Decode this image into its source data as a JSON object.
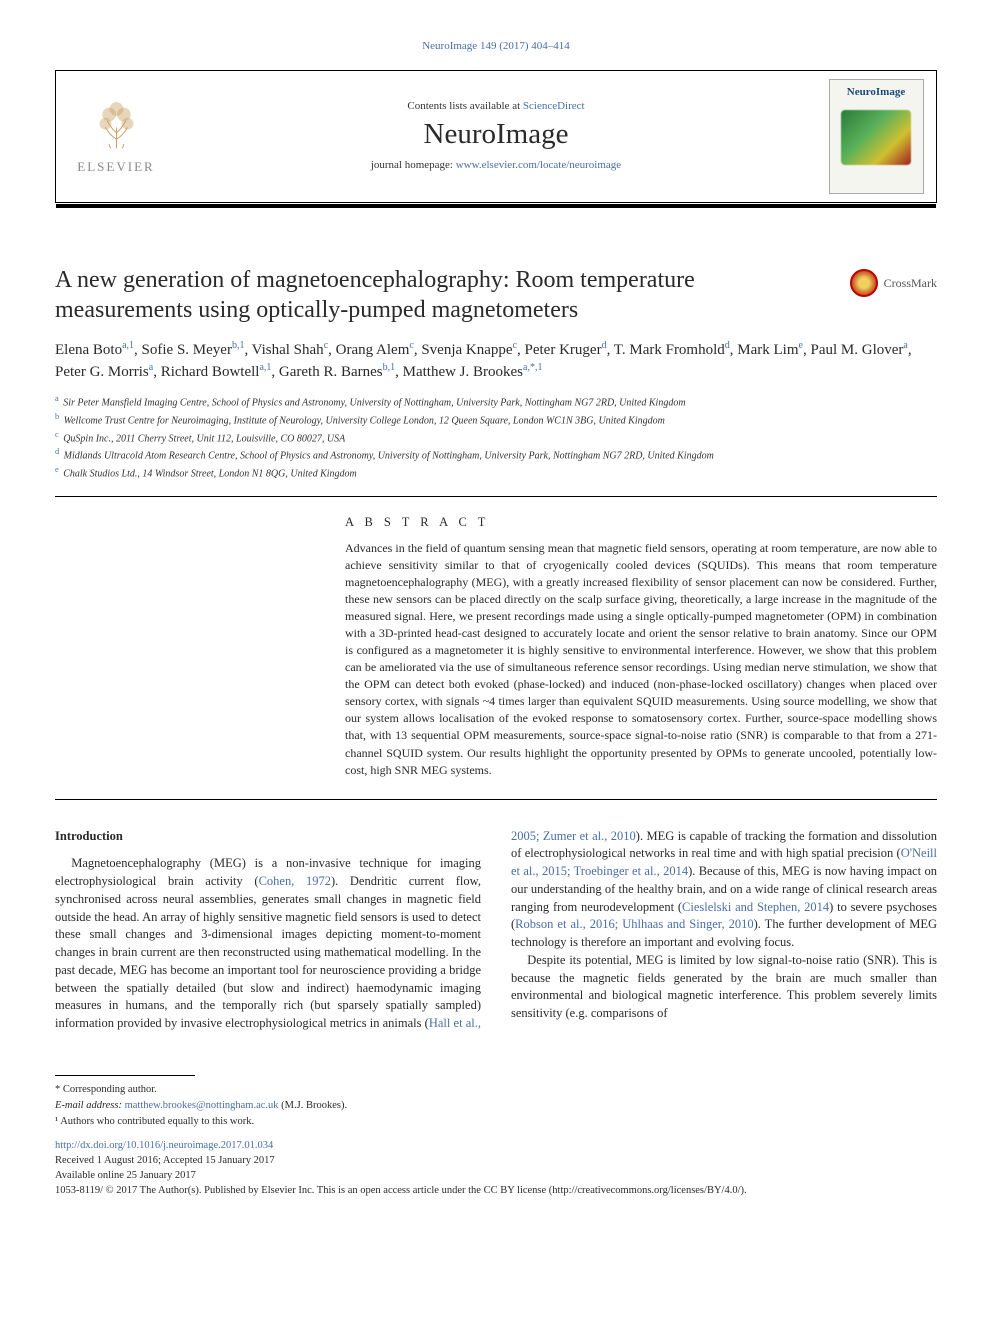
{
  "citation_header": "NeuroImage 149 (2017) 404–414",
  "masthead": {
    "contents_prefix": "Contents lists available at ",
    "contents_link": "ScienceDirect",
    "journal": "NeuroImage",
    "homepage_prefix": "journal homepage: ",
    "homepage_url": "www.elsevier.com/locate/neuroimage",
    "publisher_word": "ELSEVIER",
    "cover_title": "NeuroImage"
  },
  "crossmark_label": "CrossMark",
  "title": "A new generation of magnetoencephalography: Room temperature measurements using optically-pumped magnetometers",
  "authors_html": "Elena Boto<sup>a,1</sup>, Sofie S. Meyer<sup>b,1</sup>, Vishal Shah<sup>c</sup>, Orang Alem<sup>c</sup>, Svenja Knappe<sup>c</sup>, Peter Kruger<sup>d</sup>, T. Mark Fromhold<sup>d</sup>, Mark Lim<sup>e</sup>, Paul M. Glover<sup>a</sup>, Peter G. Morris<sup>a</sup>, Richard Bowtell<sup>a,1</sup>, Gareth R. Barnes<sup>b,1</sup>, Matthew J. Brookes<sup>a,*,1</sup>",
  "affiliations": [
    {
      "key": "a",
      "text": "Sir Peter Mansfield Imaging Centre, School of Physics and Astronomy, University of Nottingham, University Park, Nottingham NG7 2RD, United Kingdom"
    },
    {
      "key": "b",
      "text": "Wellcome Trust Centre for Neuroimaging, Institute of Neurology, University College London, 12 Queen Square, London WC1N 3BG, United Kingdom"
    },
    {
      "key": "c",
      "text": "QuSpin Inc., 2011 Cherry Street, Unit 112, Louisville, CO 80027, USA"
    },
    {
      "key": "d",
      "text": "Midlands Ultracold Atom Research Centre, School of Physics and Astronomy, University of Nottingham, University Park, Nottingham NG7 2RD, United Kingdom"
    },
    {
      "key": "e",
      "text": "Chalk Studios Ltd., 14 Windsor Street, London N1 8QG, United Kingdom"
    }
  ],
  "abstract": {
    "heading": "A B S T R A C T",
    "body": "Advances in the field of quantum sensing mean that magnetic field sensors, operating at room temperature, are now able to achieve sensitivity similar to that of cryogenically cooled devices (SQUIDs). This means that room temperature magnetoencephalography (MEG), with a greatly increased flexibility of sensor placement can now be considered. Further, these new sensors can be placed directly on the scalp surface giving, theoretically, a large increase in the magnitude of the measured signal. Here, we present recordings made using a single optically-pumped magnetometer (OPM) in combination with a 3D-printed head-cast designed to accurately locate and orient the sensor relative to brain anatomy. Since our OPM is configured as a magnetometer it is highly sensitive to environmental interference. However, we show that this problem can be ameliorated via the use of simultaneous reference sensor recordings. Using median nerve stimulation, we show that the OPM can detect both evoked (phase-locked) and induced (non-phase-locked oscillatory) changes when placed over sensory cortex, with signals ~4 times larger than equivalent SQUID measurements. Using source modelling, we show that our system allows localisation of the evoked response to somatosensory cortex. Further, source-space modelling shows that, with 13 sequential OPM measurements, source-space signal-to-noise ratio (SNR) is comparable to that from a 271-channel SQUID system. Our results highlight the opportunity presented by OPMs to generate uncooled, potentially low-cost, high SNR MEG systems."
  },
  "section_heading": "Introduction",
  "body_paragraphs": {
    "p1_pre": "Magnetoencephalography (MEG) is a non-invasive technique for imaging electrophysiological brain activity (",
    "p1_cite": "Cohen, 1972",
    "p1_post": "). Dendritic current flow, synchronised across neural assemblies, generates small changes in magnetic field outside the head. An array of highly sensitive magnetic field sensors is used to detect these small changes and 3-dimensional images depicting moment-to-moment changes in brain current are then reconstructed using mathematical modelling. In the past decade, MEG has become an important tool for neuroscience providing a bridge between the spatially detailed (but slow and indirect) haemodynamic imaging measures in humans, and the temporally rich (but sparsely spatially sampled) information provided by",
    "p2_a": "invasive electrophysiological metrics in animals (",
    "p2_cite1": "Hall et al., 2005; Zumer et al., 2010",
    "p2_b": "). MEG is capable of tracking the formation and dissolution of electrophysiological networks in real time and with high spatial precision (",
    "p2_cite2": "O'Neill et al., 2015; Troebinger et al., 2014",
    "p2_c": "). Because of this, MEG is now having impact on our understanding of the healthy brain, and on a wide range of clinical research areas ranging from neurodevelopment (",
    "p2_cite3": "Cieslelski and Stephen, 2014",
    "p2_d": ") to severe psychoses (",
    "p2_cite4": "Robson et al., 2016; Uhlhaas and Singer, 2010",
    "p2_e": "). The further development of MEG technology is therefore an important and evolving focus.",
    "p3": "Despite its potential, MEG is limited by low signal-to-noise ratio (SNR). This is because the magnetic fields generated by the brain are much smaller than environmental and biological magnetic interference. This problem severely limits sensitivity (e.g. comparisons of"
  },
  "footnotes": {
    "corr": "* Corresponding author.",
    "email_label": "E-mail address: ",
    "email": "matthew.brookes@nottingham.ac.uk",
    "email_suffix": " (M.J. Brookes).",
    "equal": "¹ Authors who contributed equally to this work."
  },
  "doi_block": {
    "doi": "http://dx.doi.org/10.1016/j.neuroimage.2017.01.034",
    "dates": "Received 1 August 2016; Accepted 15 January 2017",
    "online": "Available online 25 January 2017",
    "copyright": "1053-8119/ © 2017 The Author(s). Published by Elsevier Inc. This is an open access article under the CC BY license (http://creativecommons.org/licenses/BY/4.0/)."
  },
  "colors": {
    "link": "#4a6ea8",
    "text": "#2a2a2a",
    "rule": "#000000"
  }
}
